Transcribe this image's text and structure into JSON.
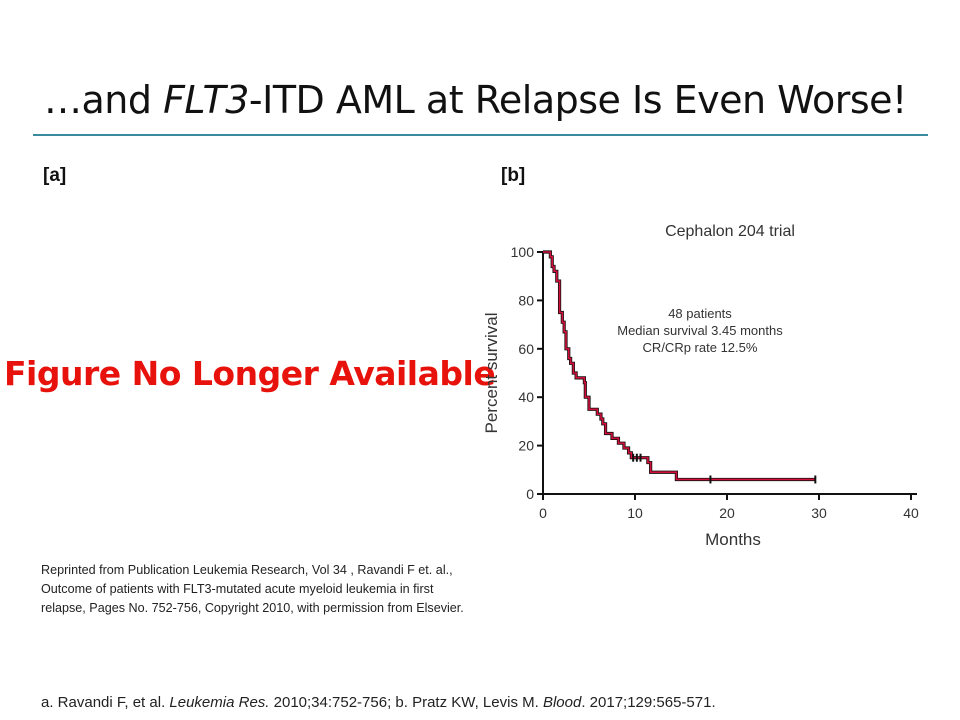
{
  "slide": {
    "title_parts": [
      "…and ",
      "FLT3",
      "-ITD AML at Relapse Is Even Worse!"
    ],
    "label_a": "[a]",
    "label_b": "[b]",
    "unavailable_notice": "Figure No Longer Available",
    "credit": "Reprinted from Publication Leukemia Research, Vol 34 , Ravandi F et. al., Outcome of patients with FLT3-mutated acute myeloid leukemia in first relapse, Pages No. 752-756, Copyright 2010, with permission from Elsevier.",
    "footnote_parts": [
      "a. Ravandi F, et al. ",
      "Leukemia Res.",
      " 2010;34:752-756; b. Pratz KW, Levis M. ",
      "Blood",
      ". 2017;129:565-571."
    ],
    "accent_color": "#3a8a9e",
    "notice_color": "#e8120c"
  },
  "chart_data": {
    "type": "line",
    "subtype": "kaplan-meier step",
    "title": "Cephalon 204 trial",
    "xlabel": "Months",
    "ylabel": "Percent survival",
    "xlim": [
      0,
      40
    ],
    "ylim": [
      0,
      100
    ],
    "xticks": [
      "0",
      "10",
      "20",
      "30",
      "40"
    ],
    "yticks": [
      "0",
      "20",
      "40",
      "60",
      "80",
      "100"
    ],
    "grid": false,
    "annotation": [
      "48 patients",
      "Median survival 3.45 months",
      "CR/CRp rate 12.5%"
    ],
    "line_color": "#d0103a",
    "steps": [
      [
        0,
        100
      ],
      [
        0.8,
        98
      ],
      [
        1.0,
        94
      ],
      [
        1.2,
        92
      ],
      [
        1.5,
        88
      ],
      [
        1.8,
        75
      ],
      [
        2.1,
        71
      ],
      [
        2.3,
        67
      ],
      [
        2.5,
        60
      ],
      [
        2.8,
        56
      ],
      [
        3.0,
        54
      ],
      [
        3.3,
        50
      ],
      [
        3.6,
        48
      ],
      [
        4.5,
        46
      ],
      [
        4.6,
        40
      ],
      [
        5.0,
        35
      ],
      [
        5.9,
        33
      ],
      [
        6.3,
        31
      ],
      [
        6.5,
        29
      ],
      [
        6.8,
        25
      ],
      [
        7.5,
        23
      ],
      [
        8.2,
        21
      ],
      [
        8.8,
        19
      ],
      [
        9.3,
        17
      ],
      [
        9.6,
        15
      ],
      [
        11.4,
        13
      ],
      [
        11.7,
        9
      ],
      [
        14.5,
        6
      ],
      [
        29.6,
        6
      ]
    ],
    "censored": [
      [
        9.8,
        15
      ],
      [
        10.2,
        15
      ],
      [
        10.6,
        15
      ],
      [
        18.2,
        6
      ],
      [
        29.6,
        6
      ]
    ]
  }
}
